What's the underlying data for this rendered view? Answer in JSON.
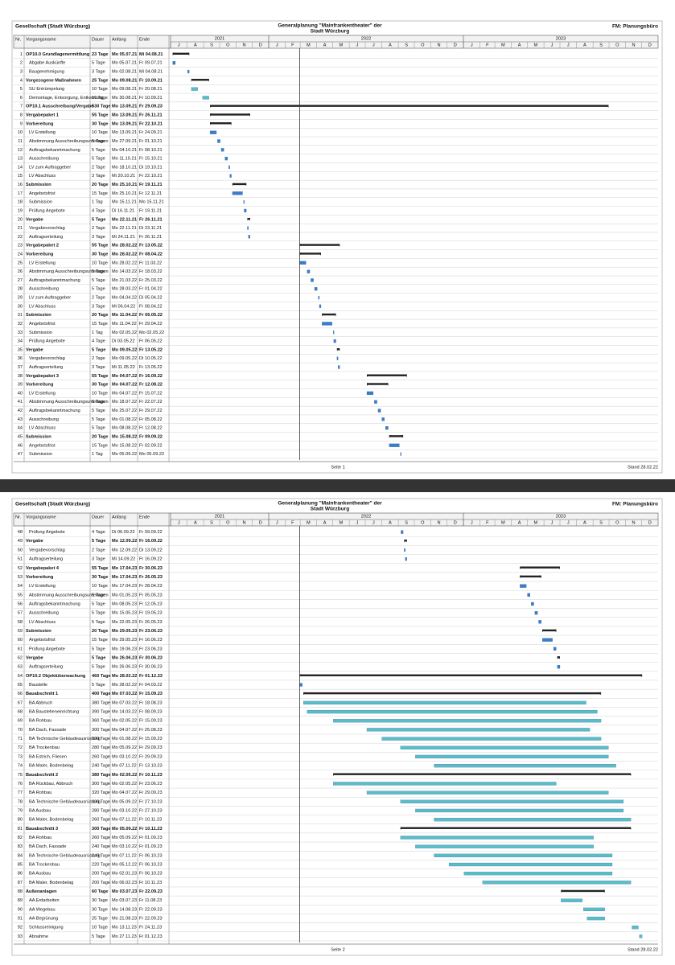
{
  "header": {
    "left": "Gesellschaft (Stadt Würzburg)",
    "title_1": "Generalplanung \"Mainfrankentheater\" der",
    "title_2": "Stadt Würzburg",
    "right": "FM: Planungsbüro"
  },
  "columns": [
    "Nr.",
    "Vorgangsname",
    "Dauer",
    "Anfang",
    "Ende"
  ],
  "timeline": {
    "start": "01.07.21",
    "end": "31.12.23",
    "years": [
      "2021",
      "2022",
      "2023"
    ],
    "month_labels": [
      "J",
      "F",
      "M",
      "A",
      "M",
      "J",
      "J",
      "A",
      "S",
      "O",
      "N",
      "D"
    ]
  },
  "task_color": "#3a7dc9",
  "summary_color": "#222222",
  "status_color": "#333333",
  "status": "Stand 28.02.22",
  "pages": [
    {
      "footer": "Seite 1",
      "rows": [
        {
          "id": "1",
          "name": "OP10.0 Grundlagenermittlung",
          "duration": "23 Tage",
          "start": "Mo 05.07.21",
          "end": "Mi 04.08.21",
          "summary": true
        },
        {
          "id": "2",
          "name": "Abgabe Auskünfte",
          "duration": "5 Tage",
          "start": "Mo 05.07.21",
          "end": "Fr 09.07.21"
        },
        {
          "id": "3",
          "name": "Baugenehmigung",
          "duration": "3 Tage",
          "start": "Mo 02.08.21",
          "end": "Mi 04.08.21"
        },
        {
          "id": "4",
          "name": "Vorgezogene Maßnahmen",
          "duration": "25 Tage",
          "start": "Mo 09.08.21",
          "end": "Fr 10.09.21",
          "summary": true
        },
        {
          "id": "5",
          "name": "SU Entrümpelung",
          "duration": "10 Tage",
          "start": "Mo 09.08.21",
          "end": "Fr 20.08.21",
          "color": "#5bbcc8"
        },
        {
          "id": "6",
          "name": "Demontage, Entsorgung, Entkernung",
          "duration": "10 Tage",
          "start": "Mo 30.08.21",
          "end": "Fr 10.09.21",
          "color": "#5bbcc8"
        },
        {
          "id": "7",
          "name": "OP10.1 Ausschreibung/Vergabe",
          "duration": "530 Tage",
          "start": "Mo 13.09.21",
          "end": "Fr 29.09.23",
          "summary": true
        },
        {
          "id": "8",
          "name": "Vergabepaket 1",
          "duration": "55 Tage",
          "start": "Mo 13.09.21",
          "end": "Fr 26.11.21",
          "summary": true
        },
        {
          "id": "9",
          "name": "Vorbereitung",
          "duration": "30 Tage",
          "start": "Mo 13.09.21",
          "end": "Fr 22.10.21",
          "summary": true
        },
        {
          "id": "10",
          "name": "LV Erstellung",
          "duration": "10 Tage",
          "start": "Mo 13.09.21",
          "end": "Fr 24.09.21"
        },
        {
          "id": "11",
          "name": "Abstimmung Ausschreibungsunterlagen",
          "duration": "5 Tage",
          "start": "Mo 27.09.21",
          "end": "Fr 01.10.21"
        },
        {
          "id": "12",
          "name": "Auftragsbekanntmachung",
          "duration": "5 Tage",
          "start": "Mo 04.10.21",
          "end": "Fr 08.10.21"
        },
        {
          "id": "13",
          "name": "Ausschreibung",
          "duration": "5 Tage",
          "start": "Mo 11.10.21",
          "end": "Fr 15.10.21"
        },
        {
          "id": "14",
          "name": "LV zum Auftraggeber",
          "duration": "2 Tage",
          "start": "Mo 18.10.21",
          "end": "Di 19.10.21"
        },
        {
          "id": "15",
          "name": "LV Abschluss",
          "duration": "3 Tage",
          "start": "Mi 20.10.21",
          "end": "Fr 22.10.21"
        },
        {
          "id": "16",
          "name": "Submission",
          "duration": "20 Tage",
          "start": "Mo 25.10.21",
          "end": "Fr 19.11.21",
          "summary": true
        },
        {
          "id": "17",
          "name": "Angebotsfrist",
          "duration": "15 Tage",
          "start": "Mo 25.10.21",
          "end": "Fr 12.11.21"
        },
        {
          "id": "18",
          "name": "Submission",
          "duration": "1 Tag",
          "start": "Mo 15.11.21",
          "end": "Mo 15.11.21"
        },
        {
          "id": "19",
          "name": "Prüfung Angebote",
          "duration": "4 Tage",
          "start": "Di 16.11.21",
          "end": "Fr 19.11.21"
        },
        {
          "id": "20",
          "name": "Vergabe",
          "duration": "5 Tage",
          "start": "Mo 22.11.21",
          "end": "Fr 26.11.21",
          "summary": true
        },
        {
          "id": "21",
          "name": "Vergabevorschlag",
          "duration": "2 Tage",
          "start": "Mo 22.11.21",
          "end": "Di 23.11.21"
        },
        {
          "id": "22",
          "name": "Auftragserteilung",
          "duration": "3 Tage",
          "start": "Mi 24.11.21",
          "end": "Fr 26.11.21"
        },
        {
          "id": "23",
          "name": "Vergabepaket 2",
          "duration": "55 Tage",
          "start": "Mo 28.02.22",
          "end": "Fr 13.05.22",
          "summary": true
        },
        {
          "id": "24",
          "name": "Vorbereitung",
          "duration": "30 Tage",
          "start": "Mo 28.02.22",
          "end": "Fr 08.04.22",
          "summary": true
        },
        {
          "id": "25",
          "name": "LV Erstellung",
          "duration": "10 Tage",
          "start": "Mo 28.02.22",
          "end": "Fr 11.03.22"
        },
        {
          "id": "26",
          "name": "Abstimmung Ausschreibungsunterlagen",
          "duration": "5 Tage",
          "start": "Mo 14.03.22",
          "end": "Fr 18.03.22"
        },
        {
          "id": "27",
          "name": "Auftragsbekanntmachung",
          "duration": "5 Tage",
          "start": "Mo 21.03.22",
          "end": "Fr 25.03.22"
        },
        {
          "id": "28",
          "name": "Ausschreibung",
          "duration": "5 Tage",
          "start": "Mo 28.03.22",
          "end": "Fr 01.04.22"
        },
        {
          "id": "29",
          "name": "LV zum Auftraggeber",
          "duration": "2 Tage",
          "start": "Mo 04.04.22",
          "end": "Di 05.04.22"
        },
        {
          "id": "30",
          "name": "LV Abschluss",
          "duration": "3 Tage",
          "start": "Mi 06.04.22",
          "end": "Fr 08.04.22"
        },
        {
          "id": "31",
          "name": "Submission",
          "duration": "20 Tage",
          "start": "Mo 11.04.22",
          "end": "Fr 06.05.22",
          "summary": true
        },
        {
          "id": "32",
          "name": "Angebotsfrist",
          "duration": "15 Tage",
          "start": "Mo 11.04.22",
          "end": "Fr 29.04.22"
        },
        {
          "id": "33",
          "name": "Submission",
          "duration": "1 Tag",
          "start": "Mo 02.05.22",
          "end": "Mo 02.05.22"
        },
        {
          "id": "34",
          "name": "Prüfung Angebote",
          "duration": "4 Tage",
          "start": "Di 03.05.22",
          "end": "Fr 06.05.22"
        },
        {
          "id": "35",
          "name": "Vergabe",
          "duration": "5 Tage",
          "start": "Mo 09.05.22",
          "end": "Fr 13.05.22",
          "summary": true
        },
        {
          "id": "36",
          "name": "Vergabevorschlag",
          "duration": "2 Tage",
          "start": "Mo 09.05.22",
          "end": "Di 10.05.22"
        },
        {
          "id": "37",
          "name": "Auftragserteilung",
          "duration": "3 Tage",
          "start": "Mi 11.05.22",
          "end": "Fr 13.05.22"
        },
        {
          "id": "38",
          "name": "Vergabepaket 3",
          "duration": "55 Tage",
          "start": "Mo 04.07.22",
          "end": "Fr 16.09.22",
          "summary": true
        },
        {
          "id": "39",
          "name": "Vorbereitung",
          "duration": "30 Tage",
          "start": "Mo 04.07.22",
          "end": "Fr 12.08.22",
          "summary": true
        },
        {
          "id": "40",
          "name": "LV Erstellung",
          "duration": "10 Tage",
          "start": "Mo 04.07.22",
          "end": "Fr 15.07.22"
        },
        {
          "id": "41",
          "name": "Abstimmung Ausschreibungsunterlagen",
          "duration": "5 Tage",
          "start": "Mo 18.07.22",
          "end": "Fr 22.07.22"
        },
        {
          "id": "42",
          "name": "Auftragsbekanntmachung",
          "duration": "5 Tage",
          "start": "Mo 25.07.22",
          "end": "Fr 29.07.22"
        },
        {
          "id": "43",
          "name": "Ausschreibung",
          "duration": "5 Tage",
          "start": "Mo 01.08.22",
          "end": "Fr 05.08.22"
        },
        {
          "id": "44",
          "name": "LV Abschluss",
          "duration": "5 Tage",
          "start": "Mo 08.08.22",
          "end": "Fr 12.08.22"
        },
        {
          "id": "45",
          "name": "Submission",
          "duration": "20 Tage",
          "start": "Mo 15.08.22",
          "end": "Fr 09.09.22",
          "summary": true
        },
        {
          "id": "46",
          "name": "Angebotsfrist",
          "duration": "15 Tage",
          "start": "Mo 15.08.22",
          "end": "Fr 02.09.22"
        },
        {
          "id": "47",
          "name": "Submission",
          "duration": "1 Tag",
          "start": "Mo 05.09.22",
          "end": "Mo 05.09.22"
        }
      ]
    },
    {
      "footer": "Seite 2",
      "rows": [
        {
          "id": "48",
          "name": "Prüfung Angebote",
          "duration": "4 Tage",
          "start": "Di 06.09.22",
          "end": "Fr 09.09.22"
        },
        {
          "id": "49",
          "name": "Vergabe",
          "duration": "5 Tage",
          "start": "Mo 12.09.22",
          "end": "Fr 16.09.22",
          "summary": true
        },
        {
          "id": "50",
          "name": "Vergabevorschlag",
          "duration": "2 Tage",
          "start": "Mo 12.09.22",
          "end": "Di 13.09.22"
        },
        {
          "id": "51",
          "name": "Auftragserteilung",
          "duration": "3 Tage",
          "start": "Mi 14.09.22",
          "end": "Fr 16.09.22"
        },
        {
          "id": "52",
          "name": "Vergabepaket 4",
          "duration": "55 Tage",
          "start": "Mo 17.04.23",
          "end": "Fr 30.06.23",
          "summary": true
        },
        {
          "id": "53",
          "name": "Vorbereitung",
          "duration": "30 Tage",
          "start": "Mo 17.04.23",
          "end": "Fr 26.05.23",
          "summary": true
        },
        {
          "id": "54",
          "name": "LV Erstellung",
          "duration": "10 Tage",
          "start": "Mo 17.04.23",
          "end": "Fr 28.04.23"
        },
        {
          "id": "55",
          "name": "Abstimmung Ausschreibungsunterlagen",
          "duration": "5 Tage",
          "start": "Mo 01.05.23",
          "end": "Fr 05.05.23"
        },
        {
          "id": "56",
          "name": "Auftragsbekanntmachung",
          "duration": "5 Tage",
          "start": "Mo 08.05.23",
          "end": "Fr 12.05.23"
        },
        {
          "id": "57",
          "name": "Ausschreibung",
          "duration": "5 Tage",
          "start": "Mo 15.05.23",
          "end": "Fr 19.05.23"
        },
        {
          "id": "58",
          "name": "LV Abschluss",
          "duration": "5 Tage",
          "start": "Mo 22.05.23",
          "end": "Fr 26.05.23"
        },
        {
          "id": "59",
          "name": "Submission",
          "duration": "20 Tage",
          "start": "Mo 29.05.23",
          "end": "Fr 23.06.23",
          "summary": true
        },
        {
          "id": "60",
          "name": "Angebotsfrist",
          "duration": "15 Tage",
          "start": "Mo 29.05.23",
          "end": "Fr 16.06.23"
        },
        {
          "id": "61",
          "name": "Prüfung Angebote",
          "duration": "5 Tage",
          "start": "Mo 19.06.23",
          "end": "Fr 23.06.23"
        },
        {
          "id": "62",
          "name": "Vergabe",
          "duration": "5 Tage",
          "start": "Mo 26.06.23",
          "end": "Fr 30.06.23",
          "summary": true
        },
        {
          "id": "63",
          "name": "Auftragserteilung",
          "duration": "5 Tage",
          "start": "Mo 26.06.23",
          "end": "Fr 30.06.23"
        },
        {
          "id": "64",
          "name": "OP10.2 Objektüberwachung",
          "duration": "460 Tage",
          "start": "Mo 28.02.22",
          "end": "Fr 01.12.23",
          "summary": true
        },
        {
          "id": "65",
          "name": "Baustelle",
          "duration": "5 Tage",
          "start": "Mo 28.02.22",
          "end": "Fr 04.03.22"
        },
        {
          "id": "66",
          "name": "Bauabschnitt 1",
          "duration": "400 Tage",
          "start": "Mo 07.03.22",
          "end": "Fr 15.09.23",
          "summary": true
        },
        {
          "id": "67",
          "name": "BA Abbruch",
          "duration": "380 Tage",
          "start": "Mo 07.03.22",
          "end": "Fr 18.08.23",
          "color": "#5bbcc8"
        },
        {
          "id": "68",
          "name": "BA Baustelleneinrichtung",
          "duration": "390 Tage",
          "start": "Mo 14.03.22",
          "end": "Fr 08.09.23",
          "color": "#5bbcc8"
        },
        {
          "id": "69",
          "name": "BA Rohbau",
          "duration": "360 Tage",
          "start": "Mo 02.05.22",
          "end": "Fr 15.09.23",
          "color": "#5bbcc8"
        },
        {
          "id": "70",
          "name": "BA Dach, Fassade",
          "duration": "300 Tage",
          "start": "Mo 04.07.22",
          "end": "Fr 25.08.23",
          "color": "#5bbcc8"
        },
        {
          "id": "71",
          "name": "BA Technische Gebäudeausrüstung",
          "duration": "300 Tage",
          "start": "Mo 01.08.22",
          "end": "Fr 15.09.23",
          "color": "#5bbcc8"
        },
        {
          "id": "72",
          "name": "BA Trockenbau",
          "duration": "280 Tage",
          "start": "Mo 05.09.22",
          "end": "Fr 29.09.23",
          "color": "#5bbcc8"
        },
        {
          "id": "73",
          "name": "BA Estrich, Fliesen",
          "duration": "260 Tage",
          "start": "Mo 03.10.22",
          "end": "Fr 29.09.23",
          "color": "#5bbcc8"
        },
        {
          "id": "74",
          "name": "BA Maler, Bodenbelag",
          "duration": "240 Tage",
          "start": "Mo 07.11.22",
          "end": "Fr 13.10.23",
          "color": "#5bbcc8"
        },
        {
          "id": "75",
          "name": "Bauabschnitt 2",
          "duration": "380 Tage",
          "start": "Mo 02.05.22",
          "end": "Fr 10.11.23",
          "summary": true
        },
        {
          "id": "76",
          "name": "BA Rückbau, Abbruch",
          "duration": "300 Tage",
          "start": "Mo 02.05.22",
          "end": "Fr 23.06.23",
          "color": "#5bbcc8"
        },
        {
          "id": "77",
          "name": "BA Rohbau",
          "duration": "320 Tage",
          "start": "Mo 04.07.22",
          "end": "Fr 29.09.23",
          "color": "#5bbcc8"
        },
        {
          "id": "78",
          "name": "BA Technische Gebäudeausrüstung",
          "duration": "300 Tage",
          "start": "Mo 05.09.22",
          "end": "Fr 27.10.23",
          "color": "#5bbcc8"
        },
        {
          "id": "79",
          "name": "BA Ausbau",
          "duration": "280 Tage",
          "start": "Mo 03.10.22",
          "end": "Fr 27.10.23",
          "color": "#5bbcc8"
        },
        {
          "id": "80",
          "name": "BA Maler, Bodenbelag",
          "duration": "260 Tage",
          "start": "Mo 07.11.22",
          "end": "Fr 10.11.23",
          "color": "#5bbcc8"
        },
        {
          "id": "81",
          "name": "Bauabschnitt 3",
          "duration": "300 Tage",
          "start": "Mo 05.09.22",
          "end": "Fr 10.11.23",
          "summary": true
        },
        {
          "id": "82",
          "name": "BA Rohbau",
          "duration": "260 Tage",
          "start": "Mo 05.09.22",
          "end": "Fr 01.09.23",
          "color": "#5bbcc8"
        },
        {
          "id": "83",
          "name": "BA Dach, Fassade",
          "duration": "240 Tage",
          "start": "Mo 03.10.22",
          "end": "Fr 01.09.23",
          "color": "#5bbcc8"
        },
        {
          "id": "84",
          "name": "BA Technische Gebäudeausrüstung",
          "duration": "240 Tage",
          "start": "Mo 07.11.22",
          "end": "Fr 06.10.23",
          "color": "#5bbcc8"
        },
        {
          "id": "85",
          "name": "BA Trockenbau",
          "duration": "220 Tage",
          "start": "Mo 05.12.22",
          "end": "Fr 06.10.23",
          "color": "#5bbcc8"
        },
        {
          "id": "86",
          "name": "BA Ausbau",
          "duration": "200 Tage",
          "start": "Mo 02.01.23",
          "end": "Fr 06.10.23",
          "color": "#5bbcc8"
        },
        {
          "id": "87",
          "name": "BA Maler, Bodenbelag",
          "duration": "200 Tage",
          "start": "Mo 06.02.23",
          "end": "Fr 10.11.23",
          "color": "#5bbcc8"
        },
        {
          "id": "88",
          "name": "Außenanlagen",
          "duration": "60 Tage",
          "start": "Mo 03.07.23",
          "end": "Fr 22.09.23",
          "summary": true
        },
        {
          "id": "89",
          "name": "AA Erdarbeiten",
          "duration": "30 Tage",
          "start": "Mo 03.07.23",
          "end": "Fr 11.08.23",
          "color": "#5bbcc8"
        },
        {
          "id": "90",
          "name": "AA Wegebau",
          "duration": "30 Tage",
          "start": "Mo 14.08.23",
          "end": "Fr 22.09.23",
          "color": "#5bbcc8"
        },
        {
          "id": "91",
          "name": "AA Begrünung",
          "duration": "25 Tage",
          "start": "Mo 21.08.23",
          "end": "Fr 22.09.23",
          "color": "#5bbcc8"
        },
        {
          "id": "92",
          "name": "Schlussreinigung",
          "duration": "10 Tage",
          "start": "Mo 13.11.23",
          "end": "Fr 24.11.23",
          "color": "#5bbcc8"
        },
        {
          "id": "93",
          "name": "Abnahme",
          "duration": "5 Tage",
          "start": "Mo 27.11.23",
          "end": "Fr 01.12.23",
          "color": "#5bbcc8"
        }
      ]
    }
  ]
}
